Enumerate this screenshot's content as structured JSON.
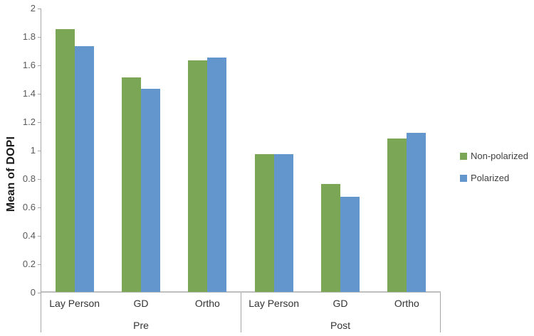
{
  "chart_data": {
    "type": "bar",
    "title": "",
    "xlabel": "",
    "ylabel": "Mean of DOPI",
    "ylim": [
      0,
      2
    ],
    "ytick_step": 0.2,
    "ytick_labels": [
      "2",
      "1.8",
      "1.6",
      "1.4",
      "1.2",
      "1",
      "0.8",
      "0.6",
      "0.4",
      "0.2",
      "0"
    ],
    "grid": false,
    "legend_position": "right",
    "groups": [
      {
        "label": "Pre",
        "categories": [
          "Lay Person",
          "GD",
          "Ortho"
        ]
      },
      {
        "label": "Post",
        "categories": [
          "Lay Person",
          "GD",
          "Ortho"
        ]
      }
    ],
    "series": [
      {
        "name": "Non-polarized",
        "color": "#7AA656",
        "values": [
          1.85,
          1.51,
          1.63,
          0.97,
          0.76,
          1.08
        ]
      },
      {
        "name": "Polarized",
        "color": "#6296CD",
        "values": [
          1.73,
          1.43,
          1.65,
          0.97,
          0.67,
          1.12
        ]
      }
    ]
  },
  "colors": {
    "y_axis_line": "#A6A6A6",
    "x_axis_line": "#BFBFBF",
    "tick_label": "#595959",
    "category_label": "#333333"
  }
}
